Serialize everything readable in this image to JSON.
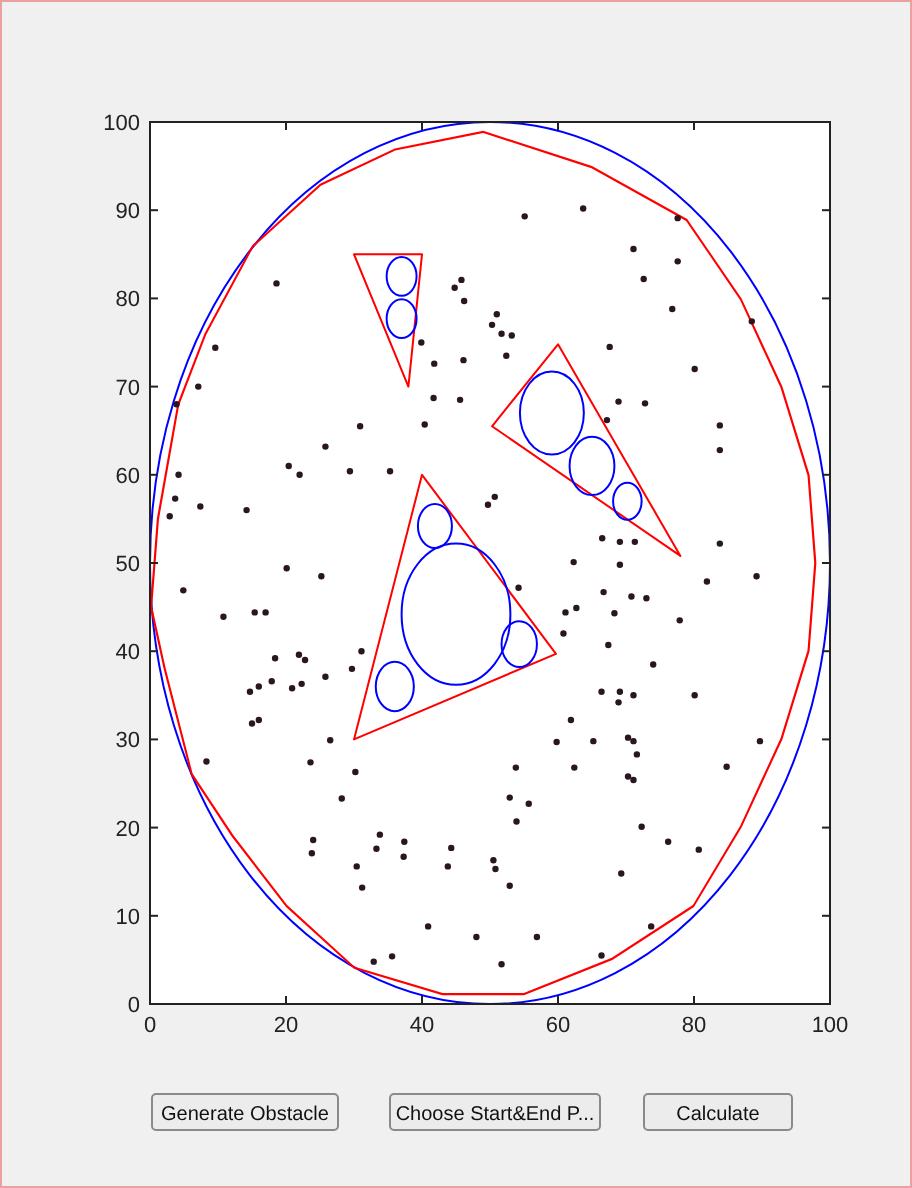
{
  "chart_data": {
    "type": "scatter",
    "xlim": [
      0,
      100
    ],
    "ylim": [
      0,
      100
    ],
    "xticks": [
      0,
      20,
      40,
      60,
      80,
      100
    ],
    "yticks": [
      0,
      10,
      20,
      30,
      40,
      50,
      60,
      70,
      80,
      90,
      100
    ],
    "grid": false,
    "annotations": [
      "Generate Obstacle",
      "Choose Start&End P...",
      "Calculate"
    ],
    "series": [
      {
        "color": "#2a1620",
        "marker": "circle",
        "x": [
          18.6,
          9.6,
          7.1,
          3.9,
          4.2,
          3.7,
          2.9,
          7.4,
          14.2,
          20.4,
          22,
          25.8,
          30.9,
          29.4,
          35.3,
          39.9,
          41.8,
          40.4,
          41.7,
          45.6,
          46.1,
          45.8,
          44.8,
          46.2,
          63.7,
          55.1,
          77.6,
          71.1,
          72.6,
          77.6,
          76.8,
          88.5,
          51,
          50.3,
          51.7,
          53.2,
          52.4,
          67.6,
          80.1,
          68.9,
          72.8,
          67.2,
          83.8,
          83.8,
          50.7,
          49.7,
          66.5,
          69.1,
          71.3,
          83.8,
          4.9,
          10.8,
          15.4,
          17,
          20.1,
          25.2,
          18.4,
          21.9,
          22.8,
          25.8,
          29.7,
          31.1,
          17.9,
          16,
          14.7,
          20.9,
          22.3,
          15,
          16,
          8.3,
          26.5,
          23.6,
          30.2,
          28.2,
          24,
          23.8,
          30.4,
          31.2,
          33.8,
          33.3,
          37.4,
          37.3,
          44.3,
          43.8,
          40.9,
          48,
          35.6,
          32.9,
          62.3,
          54.2,
          66.7,
          70.8,
          73,
          69.1,
          61.1,
          62.7,
          68.3,
          77.9,
          81.9,
          89.2,
          60.8,
          67.4,
          74,
          66.4,
          69.1,
          71.1,
          80.1,
          68.9,
          61.9,
          59.8,
          65.2,
          70.3,
          71.1,
          71.6,
          62.4,
          53.8,
          84.8,
          89.7,
          70.3,
          71.1,
          52.9,
          55.7,
          53.9,
          72.3,
          76.2,
          80.7,
          50.5,
          50.8,
          52.9,
          69.3,
          56.9,
          51.7,
          73.7,
          66.4
        ],
        "values": [
          81.7,
          74.4,
          70,
          68,
          60,
          57.3,
          55.3,
          56.4,
          56,
          61,
          60,
          63.2,
          65.5,
          60.4,
          60.4,
          75,
          72.6,
          65.7,
          68.7,
          68.5,
          73,
          82.1,
          81.2,
          79.7,
          90.2,
          89.3,
          89.1,
          85.6,
          82.2,
          84.2,
          78.8,
          77.4,
          78.2,
          77,
          76,
          75.8,
          73.5,
          74.5,
          72,
          68.3,
          68.1,
          66.2,
          65.6,
          62.8,
          57.5,
          56.6,
          52.8,
          52.4,
          52.4,
          52.2,
          46.9,
          43.9,
          44.4,
          44.4,
          49.4,
          48.5,
          39.2,
          39.6,
          39,
          37.1,
          38,
          40,
          36.6,
          36,
          35.4,
          35.8,
          36.3,
          31.8,
          32.2,
          27.5,
          29.9,
          27.4,
          26.3,
          23.3,
          18.6,
          17.1,
          15.6,
          13.2,
          19.2,
          17.6,
          18.4,
          16.7,
          17.7,
          15.6,
          8.8,
          7.6,
          5.4,
          4.8,
          50.1,
          47.2,
          46.7,
          46.2,
          46,
          49.8,
          44.4,
          44.9,
          44.3,
          43.5,
          47.9,
          48.5,
          42,
          40.7,
          38.5,
          35.4,
          35.4,
          35,
          35,
          34.2,
          32.2,
          29.7,
          29.8,
          30.2,
          29.8,
          28.3,
          26.8,
          26.8,
          26.9,
          29.8,
          25.8,
          25.4,
          23.4,
          22.7,
          20.7,
          20.1,
          18.4,
          17.5,
          16.3,
          15.3,
          13.4,
          14.8,
          7.6,
          4.5,
          8.8,
          5.5
        ]
      }
    ]
  }
}
